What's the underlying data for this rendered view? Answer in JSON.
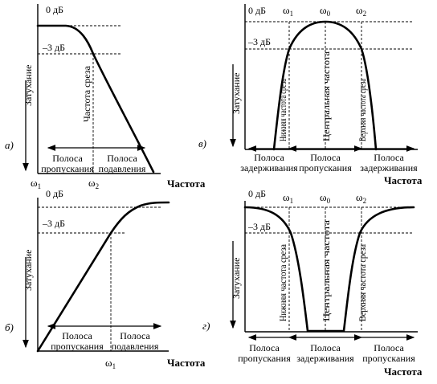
{
  "labels": {
    "zero_db": "0 дБ",
    "minus3_db": "–3 дБ",
    "attenuation": "Затухание",
    "frequency": "Частота",
    "cutoff_freq": "Частота среза",
    "lower_cutoff": "Нижняя частота среза",
    "upper_cutoff": "Верхняя частота среза",
    "center_freq": "Центральная частота",
    "passband_l1": "Полоса",
    "passband_l2": "пропускания",
    "stopband_l1": "Полоса",
    "stopband_l2": "подавления",
    "rejectband_l1": "Полоса",
    "rejectband_l2": "задерживания"
  },
  "omega": {
    "w1": "ω",
    "w1_sub": "1",
    "w2": "ω",
    "w2_sub": "2",
    "w0": "ω",
    "w0_sub": "0"
  },
  "panel_letters": {
    "a": "а)",
    "b": "б)",
    "v": "в)",
    "g": "г)"
  }
}
